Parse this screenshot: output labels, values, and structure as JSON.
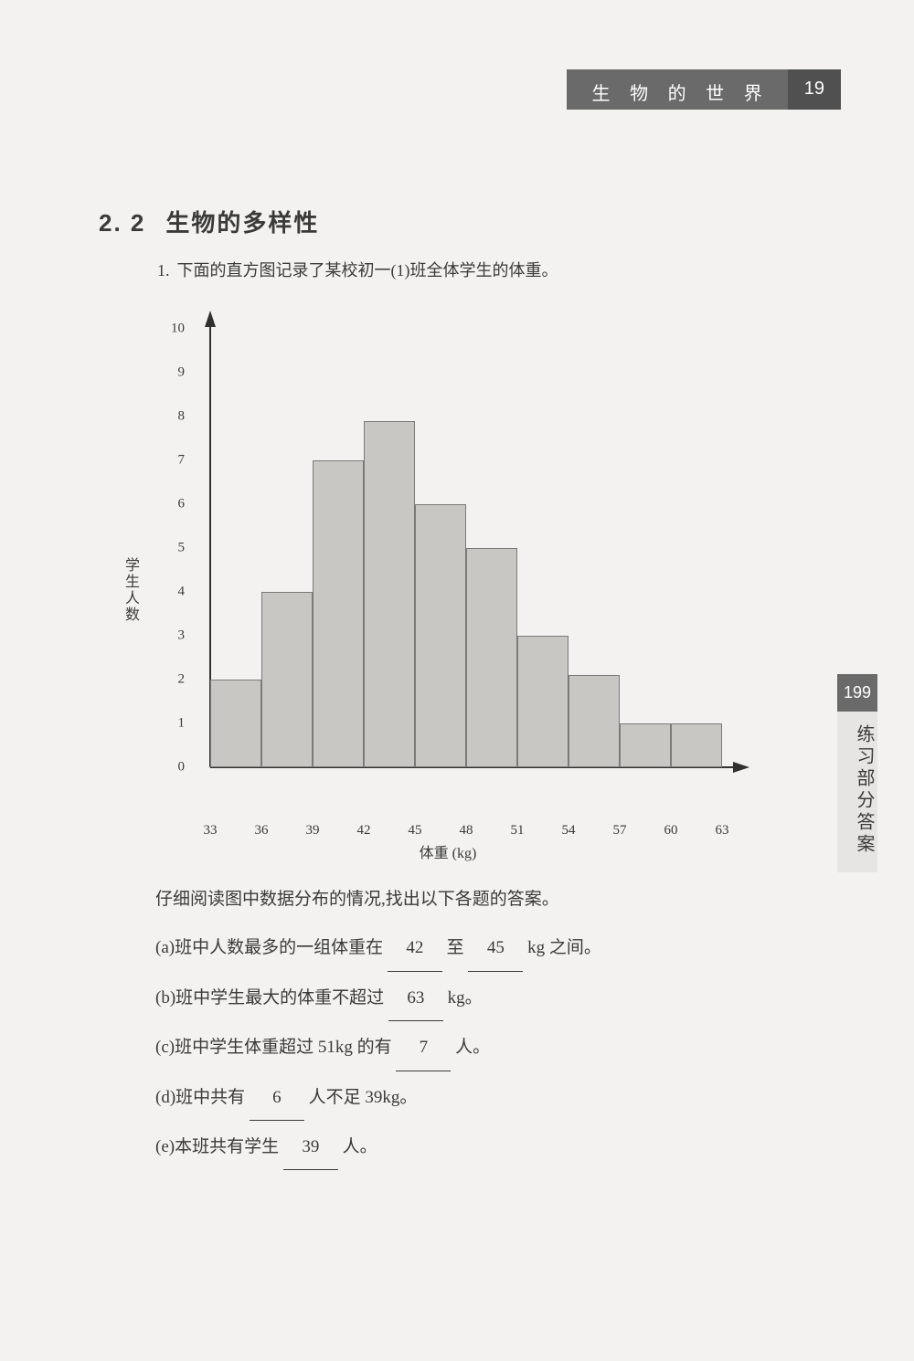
{
  "header": {
    "title": "生 物 的 世 界",
    "page_number": "19"
  },
  "section": {
    "number": "2. 2",
    "title": "生物的多样性"
  },
  "question": {
    "number": "1.",
    "intro": "下面的直方图记录了某校初一(1)班全体学生的体重。",
    "read_prompt": "仔细阅读图中数据分布的情况,找出以下各题的答案。",
    "items": {
      "a": {
        "pre": "(a)班中人数最多的一组体重在",
        "ans1": "42",
        "mid": "至",
        "ans2": "45",
        "post": "kg 之间。"
      },
      "b": {
        "pre": "(b)班中学生最大的体重不超过",
        "ans": "63",
        "post": "kg。"
      },
      "c": {
        "pre": "(c)班中学生体重超过 51kg 的有",
        "ans": "7",
        "post": "人。"
      },
      "d": {
        "pre": "(d)班中共有",
        "ans": "6",
        "post": "人不足 39kg。"
      },
      "e": {
        "pre": "(e)本班共有学生",
        "ans": "39",
        "post": "人。"
      }
    }
  },
  "chart": {
    "type": "histogram",
    "y_label": "学生人数",
    "x_label": "体重 (kg)",
    "ylim": [
      0,
      10
    ],
    "ytick_step": 1,
    "x_ticks": [
      33,
      36,
      39,
      42,
      45,
      48,
      51,
      54,
      57,
      60,
      63
    ],
    "bars": [
      {
        "from": 33,
        "to": 36,
        "value": 2
      },
      {
        "from": 36,
        "to": 39,
        "value": 4
      },
      {
        "from": 39,
        "to": 42,
        "value": 7
      },
      {
        "from": 42,
        "to": 45,
        "value": 7.9
      },
      {
        "from": 45,
        "to": 48,
        "value": 6
      },
      {
        "from": 48,
        "to": 51,
        "value": 5
      },
      {
        "from": 51,
        "to": 54,
        "value": 3
      },
      {
        "from": 54,
        "to": 57,
        "value": 2.1
      },
      {
        "from": 57,
        "to": 60,
        "value": 1
      },
      {
        "from": 60,
        "to": 63,
        "value": 1
      }
    ],
    "bar_color": "#c8c7c3",
    "bar_border_color": "#7a7a78",
    "axis_color": "#303030",
    "background_color": "#f3f2f0",
    "label_fontsize": 16,
    "tick_fontsize": 15
  },
  "sidebar": {
    "page": "199",
    "label": "练习部分答案"
  }
}
